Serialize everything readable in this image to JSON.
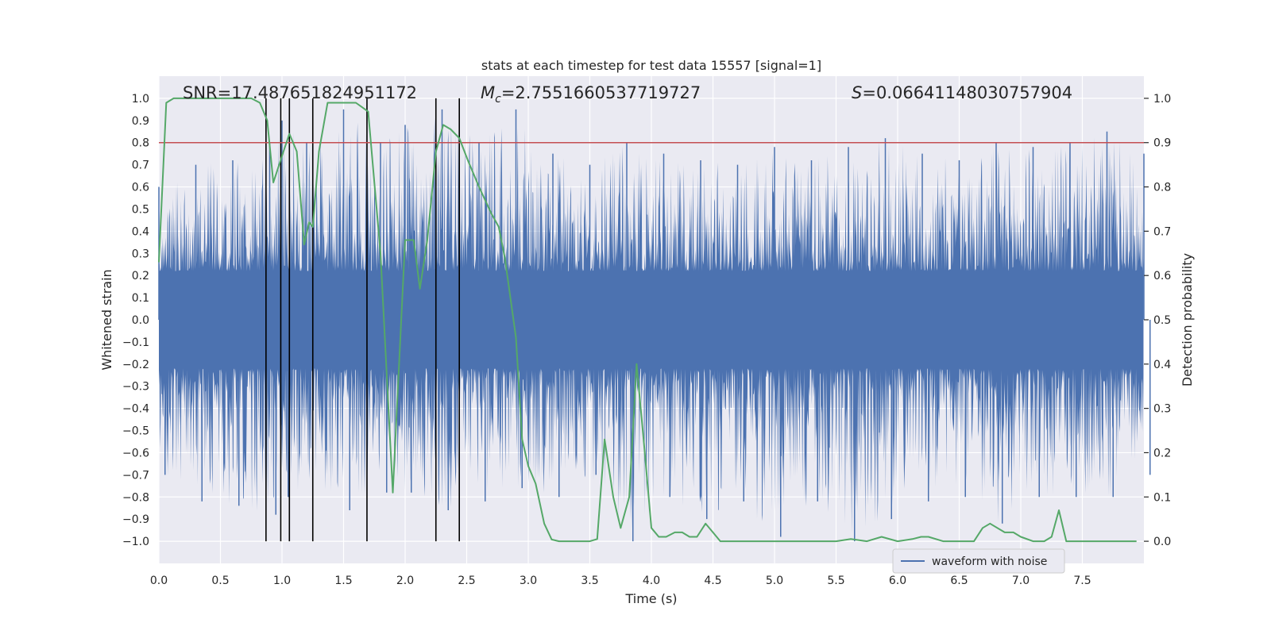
{
  "chart_data": {
    "type": "line",
    "title": "stats at each timestep for test data 15557 [signal=1]",
    "xlabel": "Time (s)",
    "ylabel": "Whitened strain",
    "y2label": "Detection probability",
    "xlim": [
      0.0,
      8.0
    ],
    "ylim": [
      -1.1,
      1.1
    ],
    "y2lim": [
      -0.05,
      1.05
    ],
    "x_ticks": [
      "0.0",
      "0.5",
      "1.0",
      "1.5",
      "2.0",
      "2.5",
      "3.0",
      "3.5",
      "4.0",
      "4.5",
      "5.0",
      "5.5",
      "6.0",
      "6.5",
      "7.0",
      "7.5"
    ],
    "y_ticks": [
      "1.0",
      "0.9",
      "0.8",
      "0.7",
      "0.6",
      "0.5",
      "0.4",
      "0.3",
      "0.2",
      "0.1",
      "0.0",
      "−0.1",
      "−0.2",
      "−0.3",
      "−0.4",
      "−0.5",
      "−0.6",
      "−0.7",
      "−0.8",
      "−0.9",
      "−1.0"
    ],
    "y2_ticks": [
      "1.0",
      "0.9",
      "0.8",
      "0.7",
      "0.6",
      "0.5",
      "0.4",
      "0.3",
      "0.2",
      "0.1",
      "0.0"
    ],
    "grid": true,
    "legend": {
      "placement": "lower-right",
      "entries": [
        "waveform with noise"
      ]
    },
    "annotations": {
      "snr": "SNR=17.487651824951172",
      "mc_symbol": "M",
      "mc_sub": "c",
      "mc_value": "=2.7551660537719727",
      "s_symbol": "S",
      "s_value": "=0.06641148030757904"
    },
    "threshold": {
      "axis": "right",
      "value": 0.9,
      "color": "#c44e52"
    },
    "event_lines_x": [
      0.87,
      0.99,
      1.06,
      1.25,
      1.69,
      2.25,
      2.44
    ],
    "series": [
      {
        "name": "waveform with noise",
        "axis": "left",
        "color": "#4c72b0",
        "envelope": {
          "t": [
            0.0,
            0.3,
            0.6,
            0.9,
            1.0,
            1.2,
            1.5,
            1.8,
            2.0,
            2.3,
            2.6,
            2.9,
            3.2,
            3.5,
            3.8,
            4.1,
            4.4,
            4.7,
            5.0,
            5.3,
            5.6,
            5.9,
            6.2,
            6.5,
            6.8,
            7.1,
            7.4,
            7.7,
            8.0
          ],
          "upper": [
            0.6,
            0.7,
            0.72,
            0.8,
            0.9,
            0.8,
            0.95,
            0.8,
            0.88,
            0.95,
            0.8,
            0.95,
            0.75,
            0.7,
            0.8,
            0.75,
            0.72,
            0.7,
            0.78,
            0.72,
            0.78,
            0.82,
            0.75,
            0.72,
            0.8,
            0.78,
            0.8,
            0.85,
            0.75
          ],
          "lower": [
            -0.7,
            -0.82,
            -0.84,
            -0.88,
            -0.8,
            -0.85,
            -0.86,
            -0.78,
            -0.78,
            -0.86,
            -0.82,
            -0.76,
            -0.8,
            -0.7,
            -1.0,
            -0.8,
            -0.9,
            -0.82,
            -0.98,
            -0.82,
            -1.0,
            -0.9,
            -0.82,
            -0.8,
            -0.92,
            -0.8,
            -0.8,
            -0.8,
            -0.7
          ]
        }
      },
      {
        "name": "",
        "axis": "right",
        "color": "#55a868",
        "x": [
          0.0,
          0.06,
          0.12,
          0.2,
          0.4,
          0.6,
          0.75,
          0.82,
          0.88,
          0.93,
          1.0,
          1.06,
          1.12,
          1.18,
          1.22,
          1.25,
          1.3,
          1.37,
          1.5,
          1.6,
          1.65,
          1.7,
          1.8,
          1.9,
          2.0,
          2.07,
          2.12,
          2.18,
          2.25,
          2.31,
          2.37,
          2.44,
          2.51,
          2.6,
          2.7,
          2.76,
          2.81,
          2.9,
          2.95,
          3.0,
          3.06,
          3.13,
          3.19,
          3.25,
          3.37,
          3.5,
          3.56,
          3.62,
          3.69,
          3.75,
          3.82,
          3.88,
          3.94,
          4.0,
          4.06,
          4.12,
          4.19,
          4.25,
          4.31,
          4.37,
          4.44,
          4.5,
          4.56,
          4.63,
          5.0,
          5.5,
          5.62,
          5.75,
          5.87,
          6.0,
          6.12,
          6.19,
          6.25,
          6.37,
          6.5,
          6.62,
          6.69,
          6.75,
          6.87,
          6.94,
          7.0,
          7.1,
          7.19,
          7.25,
          7.31,
          7.37,
          7.5,
          7.62,
          7.75,
          7.94
        ],
        "y": [
          0.63,
          0.99,
          1.0,
          1.0,
          1.0,
          1.0,
          1.0,
          0.99,
          0.95,
          0.81,
          0.87,
          0.92,
          0.88,
          0.67,
          0.72,
          0.71,
          0.88,
          0.99,
          0.99,
          0.99,
          0.98,
          0.97,
          0.65,
          0.11,
          0.68,
          0.68,
          0.57,
          0.68,
          0.88,
          0.94,
          0.93,
          0.91,
          0.86,
          0.8,
          0.74,
          0.71,
          0.64,
          0.46,
          0.23,
          0.17,
          0.13,
          0.04,
          0.004,
          0.0,
          0.0,
          0.0,
          0.005,
          0.23,
          0.1,
          0.03,
          0.1,
          0.4,
          0.22,
          0.03,
          0.01,
          0.01,
          0.02,
          0.02,
          0.01,
          0.01,
          0.04,
          0.02,
          0.0,
          0.0,
          0.0,
          0.0,
          0.005,
          0.0,
          0.01,
          0.0,
          0.005,
          0.01,
          0.01,
          0.0,
          0.0,
          0.0,
          0.03,
          0.04,
          0.02,
          0.02,
          0.01,
          0.0,
          0.0,
          0.01,
          0.07,
          0.0,
          0.0,
          0.0,
          0.0,
          0.0
        ]
      }
    ]
  }
}
